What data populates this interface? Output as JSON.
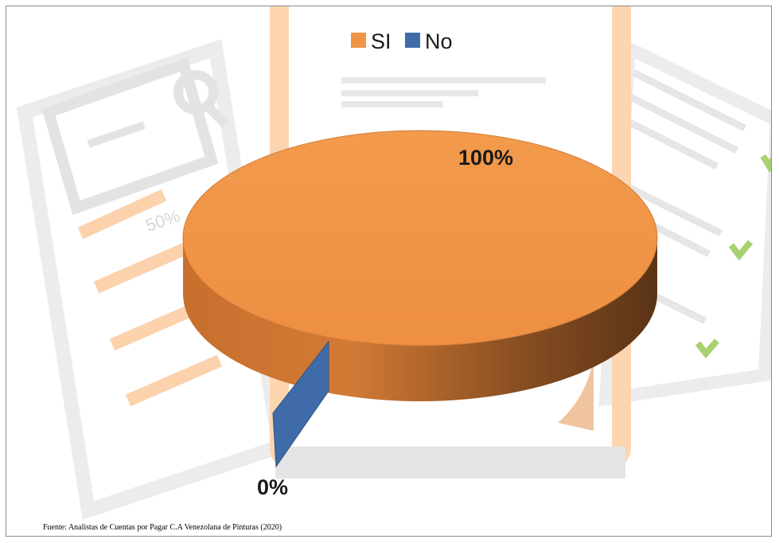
{
  "chart_data": {
    "type": "pie",
    "style": "3d",
    "categories": [
      "SI",
      "No"
    ],
    "values": [
      100,
      0
    ],
    "data_labels": [
      "100%",
      "0%"
    ],
    "colors": [
      "#F09445",
      "#3F6CA8"
    ],
    "legend": {
      "position": "top",
      "entries": [
        "SI",
        "No"
      ]
    }
  },
  "background_illustration": {
    "description_icons": [
      "search-document-icon",
      "checklist-document-icon",
      "phone-document-icon"
    ],
    "label": "50%",
    "check_color": "#8BC34A"
  },
  "source_note": "Fuente: Analistas de Cuentas por Pagar C.A Venezolana de Pinturas (2020)"
}
